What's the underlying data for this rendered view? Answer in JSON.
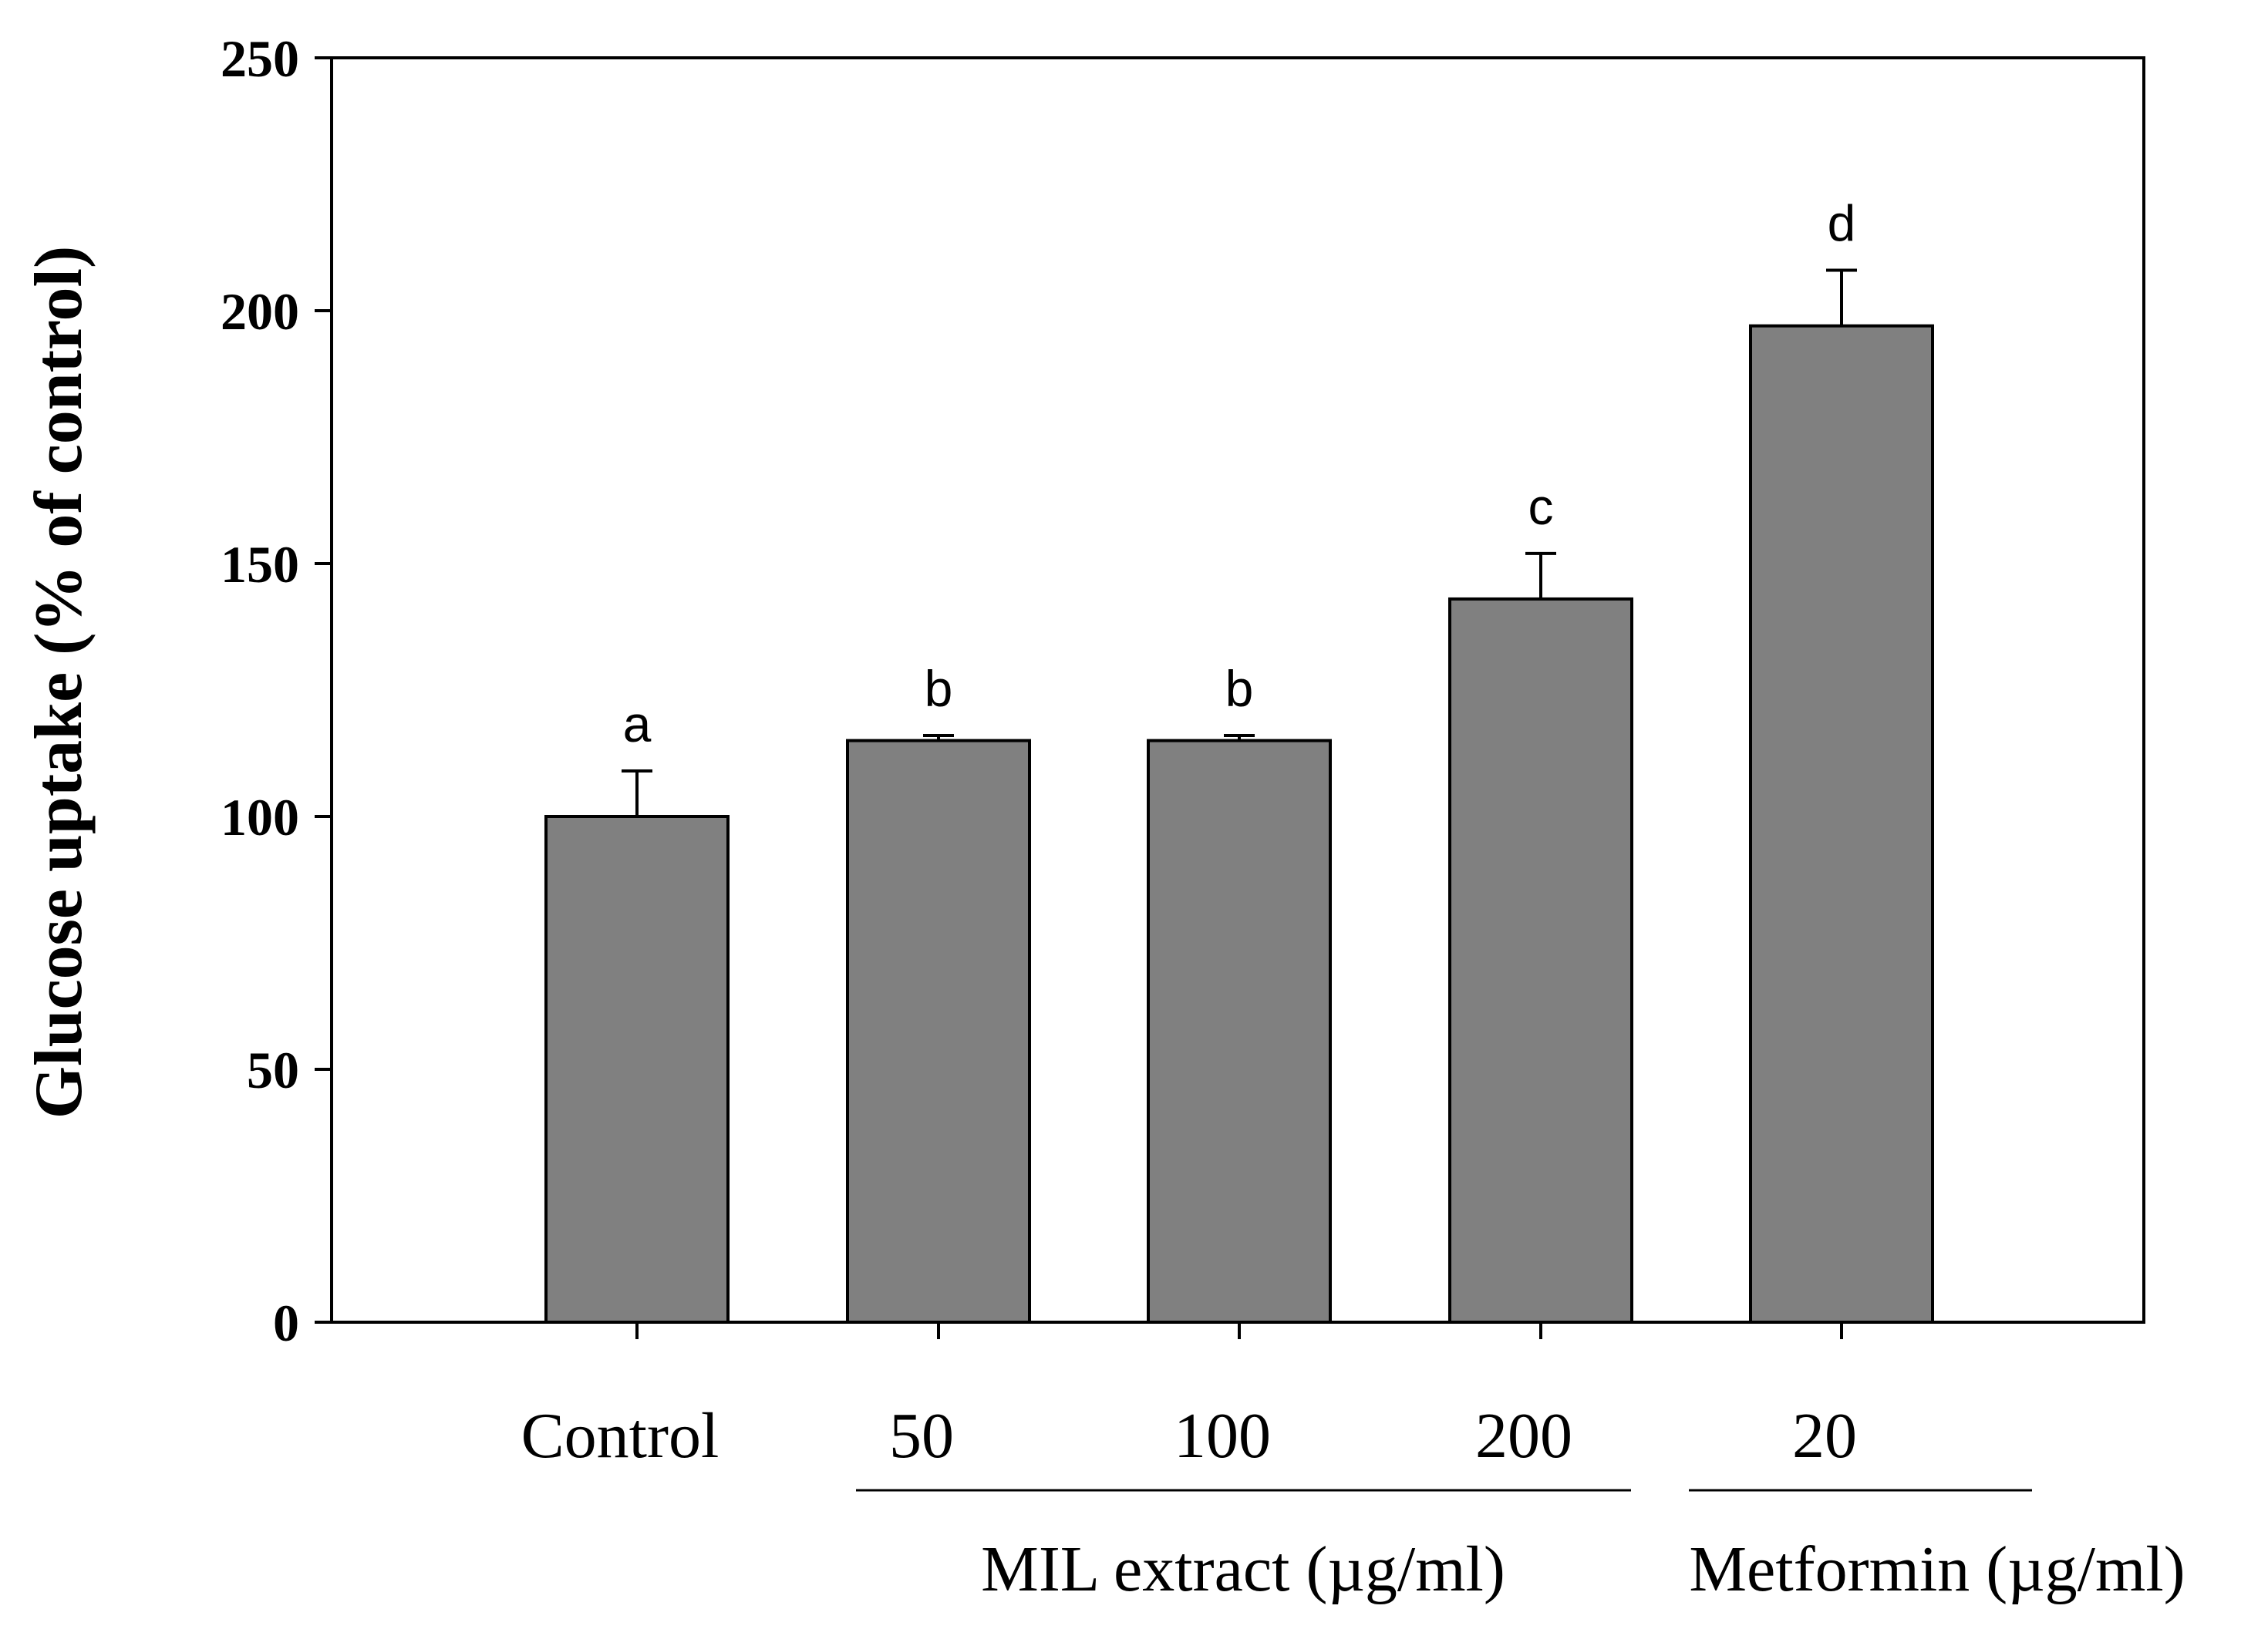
{
  "chart_data": {
    "type": "bar",
    "title": "",
    "xlabel": "",
    "ylabel": "Glucose uptake (% of control)",
    "ylim": [
      0,
      250
    ],
    "yticks": [
      0,
      50,
      100,
      150,
      200,
      250
    ],
    "categories": [
      "Control",
      "50",
      "100",
      "200",
      "20"
    ],
    "values": [
      100,
      115,
      115,
      143,
      197
    ],
    "errors": [
      9,
      1,
      1,
      9,
      11
    ],
    "significance": [
      "a",
      "b",
      "b",
      "c",
      "d"
    ],
    "bar_color": "#808080",
    "groups": [
      {
        "label": "MIL extract (µg/ml)",
        "from": 1,
        "to": 3
      },
      {
        "label": "Metformin (µg/ml)",
        "from": 4,
        "to": 4
      }
    ]
  }
}
